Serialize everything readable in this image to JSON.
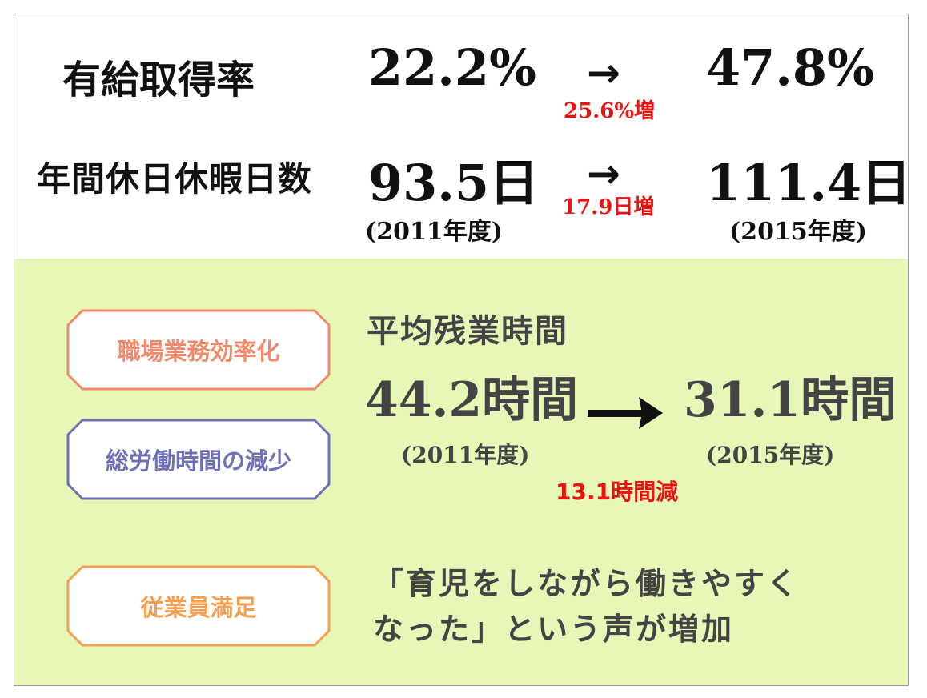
{
  "top": {
    "row1": {
      "label": "有給取得率",
      "from": "22.2%",
      "arrow": "→",
      "diff": "25.6%増",
      "to": "47.8%"
    },
    "row2": {
      "label": "年間休日休暇日数",
      "from": "93.5日",
      "arrow": "→",
      "diff": "17.9日増",
      "to": "111.4日"
    },
    "year_from": "(2011年度)",
    "year_to": "(2015年度)"
  },
  "badges": [
    {
      "label": "職場業務効率化",
      "color": "#f08a6a"
    },
    {
      "label": "総労働時間の減少",
      "color": "#7070b8"
    },
    {
      "label": "従業員満足",
      "color": "#f5a050"
    }
  ],
  "overtime": {
    "title": "平均残業時間",
    "from": "44.2時間",
    "to": "31.1時間",
    "year_from": "(2011年度)",
    "year_to": "(2015年度)",
    "diff": "13.1時間減"
  },
  "quote": {
    "line1": "「育児をしながら働きやすく",
    "line2": "なった」という声が増加"
  },
  "colors": {
    "bottom_bg": "#e6f7b8",
    "accent_red": "#ee1111",
    "text_gray": "#444444"
  }
}
